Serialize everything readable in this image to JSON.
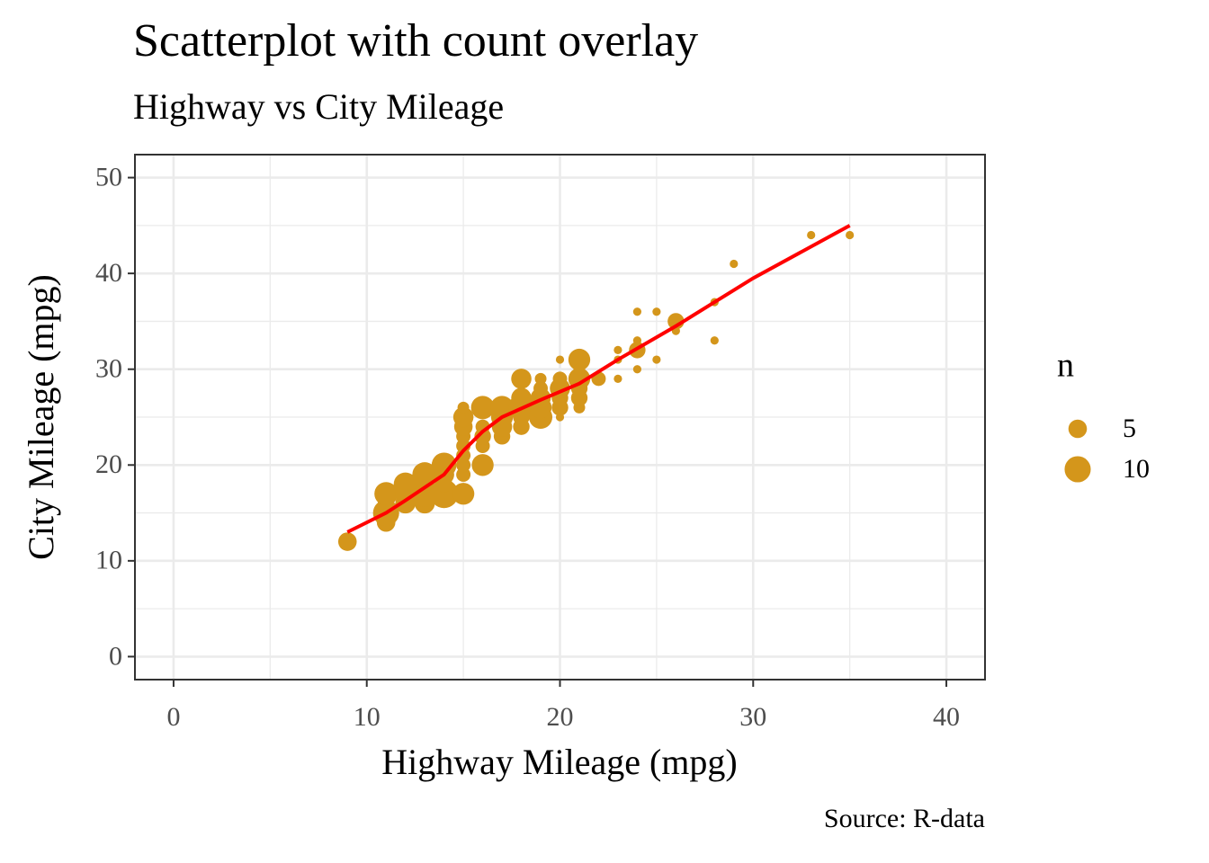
{
  "chart_data": {
    "type": "scatter",
    "title": "Scatterplot with count overlay",
    "subtitle": "Highway vs City Mileage",
    "x_label": "Highway Mileage (mpg)",
    "y_label": "City Mileage (mpg)",
    "caption": "Source: R-data",
    "color": "#D4961B",
    "x": [
      9,
      11,
      11,
      11,
      11,
      12,
      12,
      12,
      13,
      13,
      13,
      13,
      14,
      14,
      14,
      14,
      15,
      15,
      15,
      15,
      15,
      15,
      15,
      15,
      15,
      16,
      16,
      16,
      16,
      16,
      17,
      17,
      17,
      17,
      18,
      18,
      18,
      18,
      18,
      19,
      19,
      19,
      19,
      19,
      20,
      20,
      20,
      20,
      20,
      20,
      21,
      21,
      21,
      21,
      21,
      21,
      22,
      23,
      23,
      23,
      24,
      24,
      24,
      24,
      25,
      25,
      26,
      26,
      28,
      28,
      29,
      33,
      35
    ],
    "y": [
      12,
      14,
      15,
      16,
      17,
      16,
      17,
      18,
      16,
      17,
      18,
      19,
      17,
      19,
      20,
      18,
      17,
      19,
      20,
      21,
      22,
      23,
      24,
      25,
      26,
      20,
      22,
      23,
      24,
      26,
      23,
      24,
      25,
      26,
      24,
      25,
      26,
      27,
      29,
      25,
      26,
      27,
      28,
      29,
      25,
      26,
      27,
      28,
      29,
      31,
      26,
      27,
      28,
      29,
      31,
      30,
      29,
      29,
      31,
      32,
      30,
      32,
      33,
      36,
      31,
      36,
      34,
      35,
      33,
      37,
      41,
      44,
      44
    ],
    "n": [
      5,
      5,
      10,
      4,
      8,
      6,
      6,
      8,
      6,
      10,
      5,
      9,
      12,
      6,
      9,
      4,
      7,
      3,
      3,
      3,
      3,
      3,
      5,
      6,
      2,
      7,
      3,
      4,
      3,
      8,
      4,
      6,
      7,
      8,
      4,
      4,
      10,
      6,
      6,
      8,
      7,
      6,
      3,
      2,
      1,
      4,
      4,
      6,
      3,
      1,
      2,
      4,
      4,
      7,
      7,
      2,
      3,
      1,
      1,
      1,
      1,
      4,
      1,
      1,
      1,
      1,
      1,
      4,
      1,
      1,
      1,
      1,
      1
    ],
    "smooth": {
      "color": "#FF0000",
      "x": [
        9,
        11,
        12,
        14,
        15,
        16,
        17,
        19,
        21,
        23,
        26,
        30,
        35
      ],
      "y": [
        13,
        15,
        16.3,
        19,
        21.5,
        23.5,
        25,
        26.8,
        28.5,
        31,
        34.5,
        39.5,
        45
      ]
    },
    "xlim": [
      -2,
      42
    ],
    "ylim": [
      -2.4,
      52.4
    ],
    "xticks": [
      0,
      10,
      20,
      30,
      40
    ],
    "yticks": [
      0,
      10,
      20,
      30,
      40,
      50
    ],
    "xminor": [
      5,
      15,
      25,
      35
    ],
    "yminor": [
      5,
      15,
      25,
      35,
      45
    ],
    "grid": true,
    "legend": {
      "title": "n",
      "values": [
        5,
        10
      ]
    }
  }
}
